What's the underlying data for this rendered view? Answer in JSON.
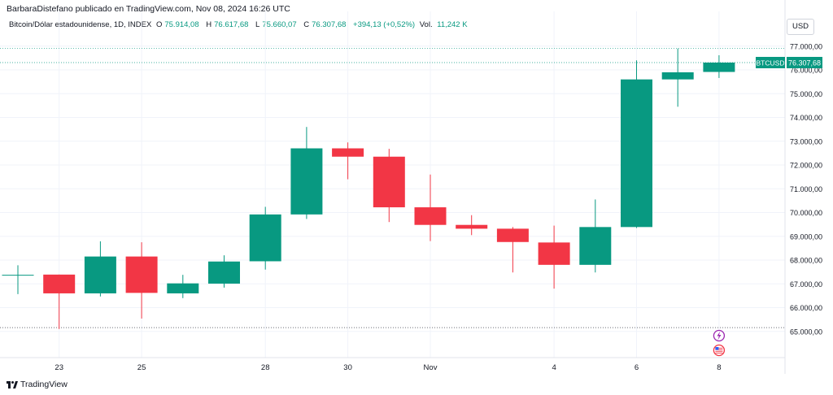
{
  "header": {
    "publisher": "BarbaraDistefano publicado en TradingView.com, Nov 08, 2024 16:26 UTC"
  },
  "legend": {
    "symbol": "Bitcoin/Dólar estadounidense, 1D, INDEX",
    "o_label": "O",
    "o_value": "75.914,08",
    "h_label": "H",
    "h_value": "76.617,68",
    "l_label": "L",
    "l_value": "75.660,07",
    "c_label": "C",
    "c_value": "76.307,68",
    "change": "+394,13 (+0,52%)",
    "vol_label": "Vol.",
    "vol_value": "11,242 K"
  },
  "currency_button": "USD",
  "price_tag": {
    "symbol": "BTCUSD",
    "value": "76.307,68"
  },
  "footer": {
    "logo_text": "TradingView"
  },
  "colors": {
    "up": "#089981",
    "down": "#f23645",
    "grid": "#f0f3fa",
    "axis_text": "#131722"
  },
  "events": [
    {
      "icon": "lightning-icon",
      "x_index": 17,
      "color": "#9c27b0"
    },
    {
      "icon": "us-flag-icon",
      "x_index": 17,
      "color": "#f23645"
    }
  ],
  "chart_data": {
    "type": "candlestick",
    "x_tick_labels": [
      {
        "index": 1,
        "label": "23"
      },
      {
        "index": 3,
        "label": "25"
      },
      {
        "index": 6,
        "label": "28"
      },
      {
        "index": 8,
        "label": "30"
      },
      {
        "index": 10,
        "label": "Nov"
      },
      {
        "index": 13,
        "label": "4"
      },
      {
        "index": 15,
        "label": "6"
      },
      {
        "index": 17,
        "label": "8"
      }
    ],
    "y_tick_labels": [
      "65.000,00",
      "66.000,00",
      "67.000,00",
      "68.000,00",
      "69.000,00",
      "70.000,00",
      "71.000,00",
      "72.000,00",
      "73.000,00",
      "74.000,00",
      "75.000,00",
      "76.000,00",
      "77.000,00"
    ],
    "y_ticks": [
      65000,
      66000,
      67000,
      68000,
      69000,
      70000,
      71000,
      72000,
      73000,
      74000,
      75000,
      76000,
      77000
    ],
    "ylim": [
      64000,
      77800
    ],
    "candles": [
      {
        "o": 67380,
        "h": 67780,
        "l": 66570,
        "c": 67380
      },
      {
        "o": 67390,
        "h": 67390,
        "l": 65100,
        "c": 66600
      },
      {
        "o": 66600,
        "h": 68790,
        "l": 66470,
        "c": 68150
      },
      {
        "o": 68150,
        "h": 68750,
        "l": 65540,
        "c": 66620
      },
      {
        "o": 66600,
        "h": 67380,
        "l": 66400,
        "c": 67020
      },
      {
        "o": 67010,
        "h": 68200,
        "l": 66840,
        "c": 67940
      },
      {
        "o": 67950,
        "h": 70240,
        "l": 67600,
        "c": 69920
      },
      {
        "o": 69920,
        "h": 73600,
        "l": 69730,
        "c": 72700
      },
      {
        "o": 72700,
        "h": 72950,
        "l": 71400,
        "c": 72350
      },
      {
        "o": 72350,
        "h": 72680,
        "l": 69600,
        "c": 70220
      },
      {
        "o": 70220,
        "h": 71600,
        "l": 68800,
        "c": 69480
      },
      {
        "o": 69480,
        "h": 69890,
        "l": 69050,
        "c": 69320
      },
      {
        "o": 69320,
        "h": 69390,
        "l": 67480,
        "c": 68760
      },
      {
        "o": 68740,
        "h": 69450,
        "l": 66800,
        "c": 67800
      },
      {
        "o": 67800,
        "h": 70550,
        "l": 67480,
        "c": 69390
      },
      {
        "o": 69390,
        "h": 76400,
        "l": 69350,
        "c": 75600
      },
      {
        "o": 75600,
        "h": 76900,
        "l": 74450,
        "c": 75900
      },
      {
        "o": 75914.08,
        "h": 76617.68,
        "l": 75660.07,
        "c": 76307.68
      }
    ],
    "last_price": 76307.68,
    "high_line": 76900
  }
}
